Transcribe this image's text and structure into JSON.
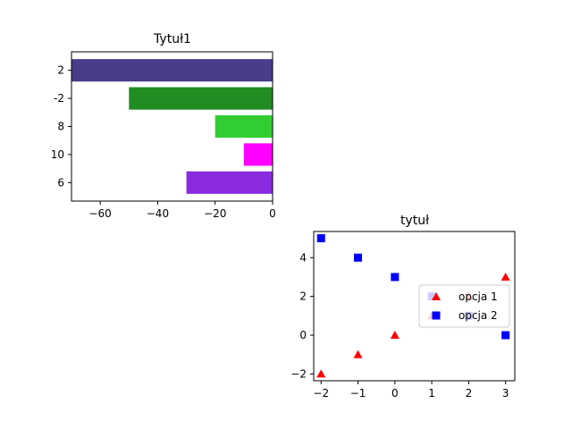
{
  "chart_data": [
    {
      "type": "bar",
      "orientation": "horizontal",
      "title": "Tytuł1",
      "xlabel": "",
      "ylabel": "",
      "categories": [
        "2",
        "-2",
        "8",
        "10",
        "6"
      ],
      "values": [
        -70,
        -50,
        -20,
        -10,
        -30
      ],
      "colors": [
        "#483d8b",
        "#228b22",
        "#32cd32",
        "#ff00ff",
        "#8a2be2"
      ],
      "xlim": [
        -70,
        0
      ],
      "xticks": [
        -60,
        -40,
        -20,
        0
      ],
      "xtick_labels": [
        "−60",
        "−40",
        "−20",
        "0"
      ],
      "grid": false
    },
    {
      "type": "scatter",
      "title": "tytuł",
      "xlabel": "",
      "ylabel": "",
      "xlim": [
        -2.2,
        3.25
      ],
      "ylim": [
        -2.35,
        5.35
      ],
      "xticks": [
        -2,
        -1,
        0,
        1,
        2,
        3
      ],
      "xtick_labels": [
        "−2",
        "−1",
        "0",
        "1",
        "2",
        "3"
      ],
      "yticks": [
        -2,
        0,
        2,
        4
      ],
      "ytick_labels": [
        "−2",
        "0",
        "2",
        "4"
      ],
      "legend_position": "center-right",
      "grid": false,
      "series": [
        {
          "name": "opcja 1",
          "marker": "triangle",
          "color": "#ff0000",
          "x": [
            -2,
            -1,
            0,
            1,
            2,
            3
          ],
          "y": [
            -2,
            -1,
            0,
            1,
            2,
            3
          ]
        },
        {
          "name": "opcja 2",
          "marker": "square",
          "color": "#0000ff",
          "x": [
            -2,
            -1,
            0,
            1,
            2,
            3
          ],
          "y": [
            5,
            4,
            3,
            2,
            1,
            0
          ]
        }
      ]
    }
  ]
}
